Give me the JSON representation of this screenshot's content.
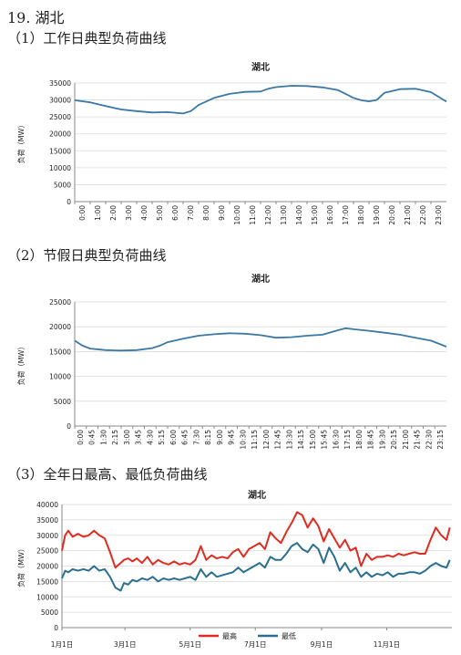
{
  "section_title": "19. 湖北",
  "charts_meta": [
    {
      "heading": "（1）工作日典型负荷曲线"
    },
    {
      "heading": "（2）节假日典型负荷曲线"
    },
    {
      "heading": "（3）全年日最高、最低负荷曲线"
    }
  ],
  "colors": {
    "series_blue": "#3a78a6",
    "series_red": "#e02b20",
    "grid": "#d9d9d9",
    "axis": "#888888"
  },
  "chart_data": [
    {
      "type": "line",
      "title": "湖北",
      "ylabel": "负荷（MW）",
      "ylim": [
        0,
        35000
      ],
      "yticks": [
        0,
        5000,
        10000,
        15000,
        20000,
        25000,
        30000,
        35000
      ],
      "xtick_labels": [
        "0:00",
        "1:00",
        "2:00",
        "3:00",
        "4:00",
        "5:00",
        "6:00",
        "7:00",
        "8:00",
        "9:00",
        "10:00",
        "11:00",
        "12:00",
        "13:00",
        "14:00",
        "15:00",
        "16:00",
        "17:00",
        "18:00",
        "19:00",
        "20:00",
        "21:00",
        "22:00",
        "23:00"
      ],
      "grid": true,
      "series": [
        {
          "color": "#3a78a6",
          "x": [
            0,
            1,
            2,
            3,
            4,
            5,
            6,
            7,
            7.5,
            8,
            9,
            10,
            11,
            12,
            12.5,
            13,
            14,
            15,
            16,
            17,
            18,
            18.5,
            19,
            19.5,
            20,
            21,
            22,
            23,
            24
          ],
          "values": [
            29900,
            29300,
            28200,
            27200,
            26700,
            26300,
            26400,
            26000,
            26700,
            28500,
            30600,
            31800,
            32400,
            32500,
            33300,
            33800,
            34200,
            34100,
            33700,
            32900,
            30600,
            29900,
            29600,
            30000,
            32100,
            33200,
            33300,
            32300,
            29500
          ]
        }
      ]
    },
    {
      "type": "line",
      "title": "湖北",
      "ylabel": "负荷（MW）",
      "ylim": [
        0,
        25000
      ],
      "yticks": [
        0,
        5000,
        10000,
        15000,
        20000,
        25000
      ],
      "xtick_labels": [
        "0:00",
        "0:45",
        "1:30",
        "2:15",
        "3:00",
        "3:45",
        "4:30",
        "5:15",
        "6:00",
        "6:45",
        "7:30",
        "8:15",
        "9:00",
        "9:45",
        "10:30",
        "11:15",
        "12:00",
        "12:45",
        "13:30",
        "14:15",
        "15:00",
        "15:45",
        "16:30",
        "17:15",
        "18:00",
        "18:45",
        "19:30",
        "20:15",
        "21:00",
        "21:45",
        "22:30",
        "23:15"
      ],
      "grid": true,
      "series": [
        {
          "color": "#3a78a6",
          "x": [
            0,
            0.5,
            1,
            2,
            3,
            4,
            5,
            5.5,
            6,
            7,
            8,
            9,
            10,
            11,
            12,
            13,
            14,
            15,
            16,
            17,
            17.5,
            18,
            19,
            20,
            21,
            22,
            23,
            24
          ],
          "values": [
            17200,
            16200,
            15600,
            15300,
            15200,
            15300,
            15700,
            16200,
            16900,
            17600,
            18200,
            18500,
            18700,
            18600,
            18300,
            17800,
            17900,
            18200,
            18400,
            19300,
            19700,
            19500,
            19200,
            18800,
            18400,
            17800,
            17200,
            16000
          ]
        }
      ]
    },
    {
      "type": "line",
      "title": "湖北",
      "ylabel": "负荷（MW）",
      "ylim": [
        0,
        40000
      ],
      "yticks": [
        0,
        5000,
        10000,
        15000,
        20000,
        25000,
        30000,
        35000,
        40000
      ],
      "xtick_labels": [
        "1月1日",
        "3月1日",
        "5月1日",
        "7月1日",
        "9月1日",
        "11月1日"
      ],
      "xtick_days": [
        0,
        59,
        120,
        181,
        243,
        304
      ],
      "xmax": 365,
      "grid": true,
      "legend": {
        "position": "bottom",
        "entries": [
          "最高",
          "最低"
        ]
      },
      "series": [
        {
          "name": "最高",
          "color": "#e02b20",
          "x": [
            0,
            3,
            6,
            10,
            15,
            20,
            25,
            30,
            35,
            40,
            45,
            50,
            55,
            58,
            62,
            66,
            70,
            75,
            80,
            85,
            90,
            95,
            100,
            105,
            110,
            115,
            120,
            125,
            130,
            135,
            140,
            145,
            150,
            155,
            160,
            165,
            170,
            175,
            180,
            185,
            190,
            195,
            200,
            205,
            210,
            215,
            220,
            225,
            230,
            235,
            240,
            245,
            250,
            255,
            260,
            265,
            270,
            275,
            280,
            285,
            290,
            295,
            300,
            305,
            310,
            315,
            320,
            325,
            330,
            335,
            340,
            345,
            350,
            355,
            360,
            363
          ],
          "values": [
            25000,
            30000,
            31500,
            29500,
            30500,
            29500,
            30000,
            31500,
            30000,
            29000,
            24500,
            19500,
            21000,
            22000,
            22500,
            21500,
            22500,
            21000,
            23000,
            20500,
            22000,
            21000,
            20500,
            21500,
            20500,
            21000,
            20500,
            22000,
            26500,
            22000,
            23500,
            22500,
            23000,
            22500,
            24500,
            25500,
            23000,
            25500,
            26500,
            27500,
            25500,
            31000,
            29000,
            27500,
            31000,
            34000,
            37500,
            36500,
            32500,
            35500,
            33000,
            28000,
            32000,
            29000,
            26000,
            28500,
            25000,
            26000,
            20000,
            24000,
            22000,
            23000,
            23000,
            23500,
            23000,
            24000,
            23500,
            24000,
            24500,
            24000,
            24000,
            28500,
            32500,
            30000,
            28500,
            32500
          ]
        },
        {
          "name": "最低",
          "color": "#2a6f8f",
          "x": [
            0,
            3,
            6,
            10,
            15,
            20,
            25,
            30,
            35,
            40,
            45,
            50,
            55,
            58,
            62,
            66,
            70,
            75,
            80,
            85,
            90,
            95,
            100,
            105,
            110,
            115,
            120,
            125,
            130,
            135,
            140,
            145,
            150,
            155,
            160,
            165,
            170,
            175,
            180,
            185,
            190,
            195,
            200,
            205,
            210,
            215,
            220,
            225,
            230,
            235,
            240,
            245,
            250,
            255,
            260,
            265,
            270,
            275,
            280,
            285,
            290,
            295,
            300,
            305,
            310,
            315,
            320,
            325,
            330,
            335,
            340,
            345,
            350,
            355,
            360,
            363
          ],
          "values": [
            16000,
            18500,
            18000,
            19000,
            18500,
            19000,
            18500,
            20000,
            18500,
            19000,
            16500,
            13000,
            12000,
            14500,
            14000,
            15500,
            15000,
            16000,
            15500,
            16500,
            15000,
            16000,
            15500,
            16000,
            15500,
            16000,
            16500,
            15500,
            19000,
            16500,
            18000,
            16500,
            17000,
            17500,
            18000,
            19500,
            18000,
            19000,
            20000,
            21000,
            19500,
            23000,
            22000,
            22000,
            24000,
            26500,
            27500,
            25500,
            24500,
            27000,
            25500,
            21000,
            26000,
            23000,
            18500,
            21000,
            18000,
            19500,
            16500,
            18000,
            16500,
            17500,
            17000,
            18000,
            16500,
            17500,
            17500,
            18000,
            18000,
            17500,
            18500,
            20000,
            21000,
            20000,
            19500,
            22000
          ]
        }
      ]
    }
  ]
}
